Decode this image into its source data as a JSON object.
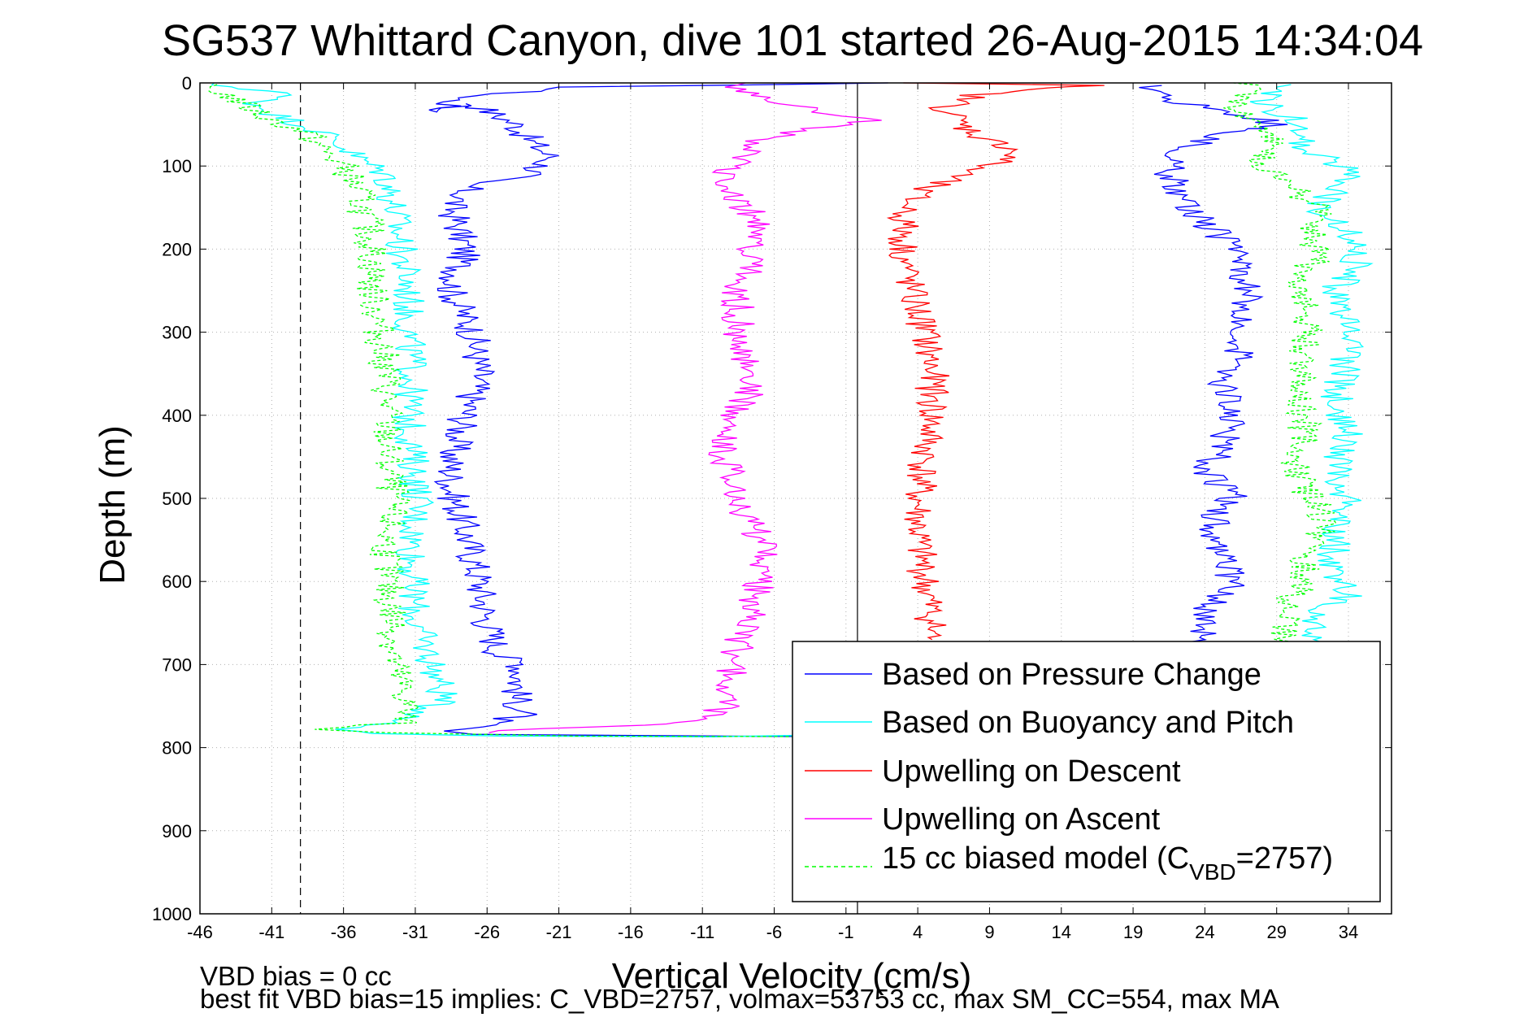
{
  "chart_data": {
    "type": "line",
    "title": "SG537 Whittard Canyon, dive 101 started 26-Aug-2015 14:34:04",
    "xlabel": "Vertical Velocity (cm/s)",
    "ylabel": "Depth (m)",
    "xlim": [
      -46,
      37
    ],
    "ylim": [
      0,
      1000
    ],
    "y_reversed": true,
    "x_ticks": [
      -46,
      -41,
      -36,
      -31,
      -26,
      -21,
      -16,
      -11,
      -6,
      -1,
      4,
      9,
      14,
      19,
      24,
      29,
      34
    ],
    "y_ticks": [
      0,
      100,
      200,
      300,
      400,
      500,
      600,
      700,
      800,
      900,
      1000
    ],
    "grid": true,
    "legend_position": "bottom-right",
    "reference_lines": [
      {
        "x": -39,
        "style": "dashed",
        "color": "#000000"
      },
      {
        "x": -0.2,
        "style": "solid",
        "color": "#000000"
      }
    ],
    "series": [
      {
        "name": "Based on Pressure Change",
        "color": "#0000ff",
        "style": "solid",
        "points": [
          [
            1,
            0
          ],
          [
            -20,
            5
          ],
          [
            -28,
            18
          ],
          [
            -29.5,
            35
          ],
          [
            -27,
            25
          ],
          [
            -24,
            50
          ],
          [
            -23,
            70
          ],
          [
            -21.5,
            90
          ],
          [
            -23,
            110
          ],
          [
            -27,
            120
          ],
          [
            -28.5,
            150
          ],
          [
            -27.5,
            200
          ],
          [
            -28.5,
            250
          ],
          [
            -27,
            300
          ],
          [
            -26.5,
            350
          ],
          [
            -27.5,
            400
          ],
          [
            -28.5,
            450
          ],
          [
            -28.5,
            490
          ],
          [
            -27.5,
            540
          ],
          [
            -26.5,
            600
          ],
          [
            -26,
            650
          ],
          [
            -25,
            690
          ],
          [
            -23.5,
            700
          ],
          [
            -24,
            740
          ],
          [
            -23.5,
            760
          ],
          [
            -27,
            775
          ],
          [
            -29,
            780
          ],
          [
            -27,
            784
          ],
          [
            -10,
            786
          ],
          [
            -1,
            787
          ],
          [
            -1,
            787
          ],
          [
            25,
            786
          ],
          [
            24,
            780
          ],
          [
            22,
            760
          ],
          [
            23,
            700
          ],
          [
            24,
            665
          ],
          [
            24.5,
            620
          ],
          [
            26,
            600
          ],
          [
            25,
            560
          ],
          [
            24.5,
            520
          ],
          [
            26,
            500
          ],
          [
            24,
            470
          ],
          [
            25,
            440
          ],
          [
            26,
            400
          ],
          [
            25,
            360
          ],
          [
            26.5,
            320
          ],
          [
            27,
            280
          ],
          [
            27,
            240
          ],
          [
            26,
            200
          ],
          [
            23,
            150
          ],
          [
            21.5,
            110
          ],
          [
            22.5,
            80
          ],
          [
            25,
            60
          ],
          [
            27,
            55
          ],
          [
            29,
            55
          ],
          [
            28.5,
            45
          ],
          [
            22,
            22
          ],
          [
            20,
            8
          ],
          [
            21,
            3
          ]
        ]
      },
      {
        "name": "Based on Buoyancy and Pitch",
        "color": "#00ffff",
        "style": "solid",
        "points": [
          [
            -46,
            0
          ],
          [
            -40,
            12
          ],
          [
            -42,
            25
          ],
          [
            -40.5,
            40
          ],
          [
            -38,
            55
          ],
          [
            -36.5,
            70
          ],
          [
            -35,
            90
          ],
          [
            -33,
            110
          ],
          [
            -32.5,
            150
          ],
          [
            -32,
            200
          ],
          [
            -31.5,
            250
          ],
          [
            -31.5,
            300
          ],
          [
            -31.2,
            350
          ],
          [
            -31.5,
            400
          ],
          [
            -31.2,
            450
          ],
          [
            -30.8,
            500
          ],
          [
            -31.2,
            550
          ],
          [
            -31.2,
            600
          ],
          [
            -31,
            650
          ],
          [
            -30,
            690
          ],
          [
            -29,
            740
          ],
          [
            -31,
            765
          ],
          [
            -36,
            778
          ],
          [
            -34,
            783
          ],
          [
            -25,
            786
          ],
          [
            -10,
            787
          ],
          [
            -10,
            787
          ],
          [
            30,
            775
          ],
          [
            32,
            730
          ],
          [
            31.5,
            690
          ],
          [
            31.5,
            640
          ],
          [
            34,
            615
          ],
          [
            33,
            590
          ],
          [
            33,
            540
          ],
          [
            34,
            500
          ],
          [
            33,
            460
          ],
          [
            34,
            420
          ],
          [
            33,
            390
          ],
          [
            34,
            320
          ],
          [
            33.5,
            280
          ],
          [
            33,
            250
          ],
          [
            34.5,
            220
          ],
          [
            34,
            180
          ],
          [
            32,
            150
          ],
          [
            34,
            110
          ],
          [
            33,
            95
          ],
          [
            30.5,
            70
          ],
          [
            31,
            50
          ],
          [
            29,
            35
          ],
          [
            28,
            20
          ],
          [
            29,
            5
          ],
          [
            30,
            2
          ]
        ]
      },
      {
        "name": "Upwelling on Descent",
        "color": "#ff0000",
        "style": "solid",
        "points": [
          [
            3,
            0
          ],
          [
            17,
            3
          ],
          [
            12,
            6
          ],
          [
            8,
            15
          ],
          [
            6,
            30
          ],
          [
            7,
            50
          ],
          [
            9,
            70
          ],
          [
            11,
            80
          ],
          [
            10,
            92
          ],
          [
            7,
            110
          ],
          [
            4,
            130
          ],
          [
            3,
            160
          ],
          [
            3,
            200
          ],
          [
            3.5,
            250
          ],
          [
            4.5,
            300
          ],
          [
            5,
            350
          ],
          [
            5,
            400
          ],
          [
            4.5,
            450
          ],
          [
            4,
            500
          ],
          [
            4,
            550
          ],
          [
            4.5,
            600
          ],
          [
            5,
            650
          ],
          [
            5,
            670
          ]
        ]
      },
      {
        "name": "Upwelling on Ascent",
        "color": "#ff00ff",
        "style": "solid",
        "points": [
          [
            -27,
            782
          ],
          [
            -22,
            777
          ],
          [
            -15,
            773
          ],
          [
            -12,
            770
          ],
          [
            -10,
            760
          ],
          [
            -9,
            740
          ],
          [
            -9,
            700
          ],
          [
            -8,
            650
          ],
          [
            -7,
            600
          ],
          [
            -6.5,
            560
          ],
          [
            -8,
            520
          ],
          [
            -9,
            480
          ],
          [
            -9.5,
            440
          ],
          [
            -9,
            400
          ],
          [
            -8,
            380
          ],
          [
            -7.5,
            350
          ],
          [
            -8.5,
            300
          ],
          [
            -8.5,
            250
          ],
          [
            -7.5,
            200
          ],
          [
            -7,
            170
          ],
          [
            -8,
            150
          ],
          [
            -10,
            120
          ],
          [
            -9,
            100
          ],
          [
            -8,
            80
          ],
          [
            -7,
            70
          ],
          [
            -4,
            55
          ],
          [
            -1,
            50
          ],
          [
            1,
            45
          ],
          [
            -1,
            40
          ],
          [
            -2.5,
            35
          ],
          [
            -4,
            30
          ],
          [
            -6,
            20
          ],
          [
            -8,
            10
          ],
          [
            -9,
            5
          ],
          [
            -8,
            0
          ]
        ]
      },
      {
        "name": "15 cc biased model (C_VBD=2757)",
        "color": "#00ff00",
        "style": "dashed",
        "points": [
          [
            -46,
            2
          ],
          [
            -44,
            15
          ],
          [
            -42.5,
            30
          ],
          [
            -41,
            45
          ],
          [
            -38.5,
            60
          ],
          [
            -37.5,
            80
          ],
          [
            -36,
            100
          ],
          [
            -35,
            130
          ],
          [
            -34.5,
            160
          ],
          [
            -34,
            200
          ],
          [
            -34,
            250
          ],
          [
            -33.5,
            300
          ],
          [
            -33,
            350
          ],
          [
            -33,
            400
          ],
          [
            -33,
            450
          ],
          [
            -32.5,
            500
          ],
          [
            -33,
            550
          ],
          [
            -33,
            600
          ],
          [
            -32.5,
            650
          ],
          [
            -32.5,
            700
          ],
          [
            -31.5,
            750
          ],
          [
            -32,
            770
          ],
          [
            -38,
            778
          ],
          [
            -33,
            782
          ],
          [
            -20,
            786
          ],
          [
            0,
            787
          ],
          [
            0,
            787
          ],
          [
            29,
            672
          ],
          [
            29.5,
            650
          ],
          [
            30,
            620
          ],
          [
            31,
            600
          ],
          [
            31,
            570
          ],
          [
            32,
            540
          ],
          [
            32,
            510
          ],
          [
            31,
            490
          ],
          [
            30,
            450
          ],
          [
            31,
            420
          ],
          [
            30.5,
            370
          ],
          [
            31,
            330
          ],
          [
            31,
            290
          ],
          [
            31,
            260
          ],
          [
            30,
            230
          ],
          [
            32,
            210
          ],
          [
            31.5,
            180
          ],
          [
            32,
            150
          ],
          [
            30,
            125
          ],
          [
            28,
            100
          ],
          [
            29,
            70
          ],
          [
            27,
            50
          ],
          [
            26,
            30
          ],
          [
            27,
            15
          ],
          [
            28,
            5
          ],
          [
            26,
            0
          ]
        ]
      }
    ],
    "annotations": [
      "VBD bias = 0 cc",
      "best fit VBD bias=15 implies: C_VBD=2757, volmax=53753 cc, max SM_CC=554, max MA"
    ]
  },
  "legend": {
    "entries": [
      {
        "label": "Based on Pressure Change",
        "color": "#0000ff",
        "dash": false
      },
      {
        "label": "Based on Buoyancy and Pitch",
        "color": "#00ffff",
        "dash": false
      },
      {
        "label": "Upwelling on Descent",
        "color": "#ff0000",
        "dash": false
      },
      {
        "label": "Upwelling on Ascent",
        "color": "#ff00ff",
        "dash": false
      },
      {
        "label": "15 cc biased model (C",
        "sub": "VBD",
        "tail": "=2757)",
        "color": "#00ff00",
        "dash": true
      }
    ]
  }
}
